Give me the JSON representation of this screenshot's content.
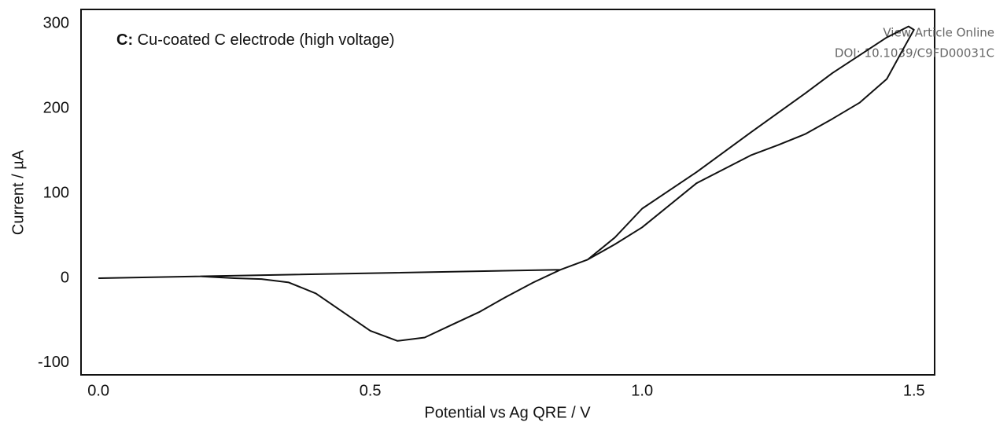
{
  "chart_data": {
    "type": "line",
    "title_label": "C:",
    "title": "Cu-coated C electrode (high voltage)",
    "annotations": [
      "View Article Online",
      "DOI: 10.1039/C9FD00031C"
    ],
    "x_label": "Potential vs Ag QRE / V",
    "y_label": "Current / µA",
    "xlim": [
      -0.032,
      1.538
    ],
    "ylim": [
      -114,
      317
    ],
    "xticks": [
      {
        "value": 0,
        "label": "0.0"
      },
      0.5,
      {
        "value": 1,
        "label": "1.0"
      },
      1.5
    ],
    "yticks": [
      -100,
      0,
      100,
      200,
      300
    ],
    "series": [
      {
        "name": "Cu-coated C electrode",
        "color": "#111111",
        "x": [
          0.19,
          0.25,
          0.3,
          0.35,
          0.4,
          0.45,
          0.5,
          0.55,
          0.6,
          0.65,
          0.7,
          0.75,
          0.8,
          0.85,
          0.9,
          0.95,
          1.0,
          1.1,
          1.2,
          1.3,
          1.35,
          1.4,
          1.45,
          1.49,
          1.5,
          1.48,
          1.45,
          1.4,
          1.35,
          1.3,
          1.25,
          1.2,
          1.1,
          1.0,
          0.95,
          0.9,
          0.85,
          0.0
        ],
        "values": [
          2,
          0,
          -1,
          -5,
          -18,
          -40,
          -62,
          -74,
          -70,
          -55,
          -40,
          -22,
          -5,
          10,
          22,
          48,
          82,
          125,
          172,
          218,
          242,
          263,
          284,
          297,
          293,
          270,
          235,
          207,
          188,
          170,
          157,
          145,
          112,
          60,
          40,
          22,
          10,
          0
        ]
      }
    ]
  }
}
